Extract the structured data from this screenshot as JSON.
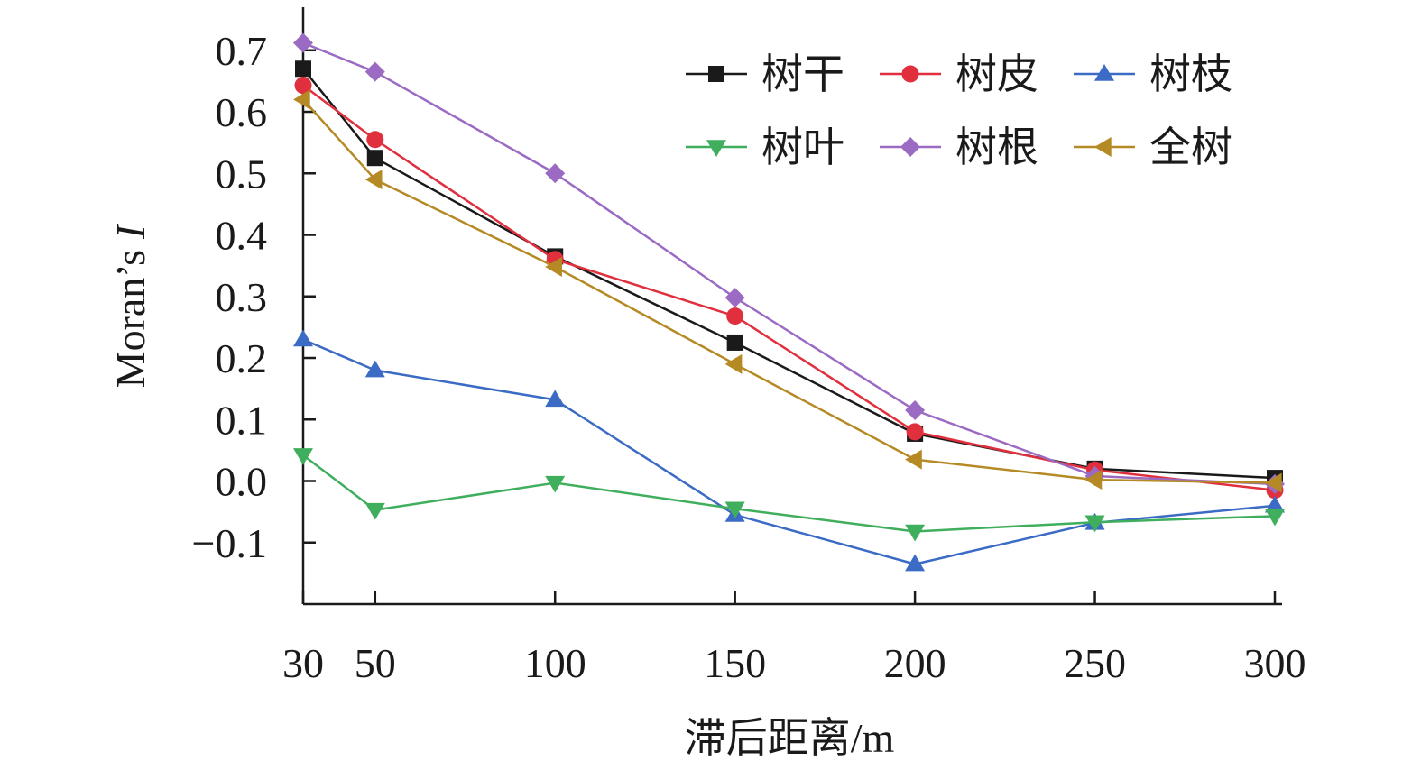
{
  "chart_data": {
    "type": "line",
    "xlabel": "滞后距离/m",
    "ylabel_main": "Moran’s",
    "ylabel_italic": "I",
    "x": [
      30,
      50,
      100,
      150,
      200,
      250,
      300
    ],
    "xticks": [
      "30",
      "50",
      "100",
      "150",
      "200",
      "250",
      "300"
    ],
    "yticks": [
      -0.1,
      0.0,
      0.1,
      0.2,
      0.3,
      0.4,
      0.5,
      0.6,
      0.7
    ],
    "ytick_labels": [
      "−0.1",
      "0.0",
      "0.1",
      "0.2",
      "0.3",
      "0.4",
      "0.5",
      "0.6",
      "0.7"
    ],
    "xlim": [
      30,
      300
    ],
    "ylim": [
      -0.2,
      0.77
    ],
    "grid": false,
    "legend_position": "top-right",
    "series": [
      {
        "name": "树干",
        "marker": "square",
        "color": "#1a1a1a",
        "values": [
          0.67,
          0.525,
          0.365,
          0.225,
          0.077,
          0.02,
          0.005
        ]
      },
      {
        "name": "树皮",
        "marker": "circle",
        "color": "#e0303e",
        "values": [
          0.643,
          0.555,
          0.36,
          0.268,
          0.08,
          0.018,
          -0.015
        ]
      },
      {
        "name": "树枝",
        "marker": "triangle-up",
        "color": "#3b6bc4",
        "values": [
          0.23,
          0.18,
          0.132,
          -0.055,
          -0.135,
          -0.068,
          -0.04
        ]
      },
      {
        "name": "树叶",
        "marker": "triangle-down",
        "color": "#3fae5d",
        "values": [
          0.042,
          -0.047,
          -0.003,
          -0.045,
          -0.082,
          -0.067,
          -0.057
        ]
      },
      {
        "name": "树根",
        "marker": "diamond",
        "color": "#9b6bc4",
        "values": [
          0.712,
          0.665,
          0.5,
          0.298,
          0.115,
          0.008,
          -0.005
        ]
      },
      {
        "name": "全树",
        "marker": "triangle-left",
        "color": "#b58a24",
        "values": [
          0.62,
          0.49,
          0.348,
          0.19,
          0.035,
          0.002,
          -0.003
        ]
      }
    ]
  }
}
